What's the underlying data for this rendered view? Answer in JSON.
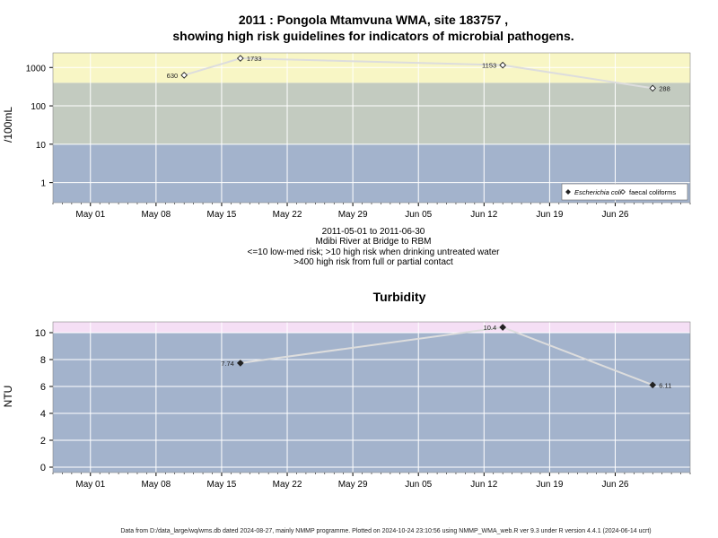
{
  "header": {
    "title_line1": "2011 : Pongola Mtamvuna WMA, site 183757 ,",
    "title_line2": "showing high risk guidelines for indicators of microbial pathogens."
  },
  "caption": {
    "line1": "2011-05-01 to 2011-06-30",
    "line2": "Mdibi River at Bridge to RBM",
    "line3": "<=10 low-med risk; >10 high risk when drinking untreated water",
    "line4": ">400 high risk from full or partial contact"
  },
  "footer": {
    "text": "Data from D:/data_large/wq/wms.db dated 2024-08-27, mainly NMMP programme. Plotted on 2024-10-24 23:10:56 using NMMP_WMA_web.R ver 9.3 under R version 4.4.1 (2024-06-14 ucrt)"
  },
  "colors": {
    "zone_low": "#a3b3cc",
    "zone_mid": "#c3cbc0",
    "zone_high_microbial": "#f8f6c5",
    "zone_high_turbidity": "#f5dff5",
    "grid": "#ffffff",
    "series_line": "#dddddd"
  },
  "chart_data": [
    {
      "type": "line",
      "title": "",
      "ylabel": "/100mL",
      "xlabel": "",
      "yscale": "log",
      "ylim": [
        0.3,
        2400
      ],
      "xlim": [
        "2011-04-27",
        "2011-07-04"
      ],
      "x_ticks": [
        "May 01",
        "May 08",
        "May 15",
        "May 22",
        "May 29",
        "Jun 05",
        "Jun 12",
        "Jun 19",
        "Jun 26"
      ],
      "x_tick_dates": [
        "2011-05-01",
        "2011-05-08",
        "2011-05-15",
        "2011-05-22",
        "2011-05-29",
        "2011-06-05",
        "2011-06-12",
        "2011-06-19",
        "2011-06-26"
      ],
      "y_ticks": [
        "1",
        "10",
        "100",
        "1000"
      ],
      "y_tick_values": [
        1,
        10,
        100,
        1000
      ],
      "zones": [
        {
          "from": 0.3,
          "to": 10,
          "color": "#a3b3cc"
        },
        {
          "from": 10,
          "to": 400,
          "color": "#c3cbc0"
        },
        {
          "from": 400,
          "to": 2400,
          "color": "#f8f6c5"
        }
      ],
      "legend_position": "bottom-right",
      "legend": [
        {
          "label": "Escherichia coli",
          "marker": "filled-diamond"
        },
        {
          "label": "faecal coliforms",
          "marker": "open-diamond"
        }
      ],
      "series": [
        {
          "name": "faecal coliforms",
          "marker": "open-diamond",
          "x": [
            "2011-05-11",
            "2011-05-17",
            "2011-06-14",
            "2011-06-30"
          ],
          "y": [
            630,
            1733,
            1153,
            288
          ],
          "labels": [
            "630",
            "1733",
            "1153",
            "288"
          ],
          "label_side": [
            "left",
            "right",
            "left",
            "right"
          ]
        }
      ]
    },
    {
      "type": "line",
      "title": "Turbidity",
      "ylabel": "NTU",
      "xlabel": "",
      "ylim": [
        -0.4,
        10.8
      ],
      "xlim": [
        "2011-04-27",
        "2011-07-04"
      ],
      "x_ticks": [
        "May 01",
        "May 08",
        "May 15",
        "May 22",
        "May 29",
        "Jun 05",
        "Jun 12",
        "Jun 19",
        "Jun 26"
      ],
      "x_tick_dates": [
        "2011-05-01",
        "2011-05-08",
        "2011-05-15",
        "2011-05-22",
        "2011-05-29",
        "2011-06-05",
        "2011-06-12",
        "2011-06-19",
        "2011-06-26"
      ],
      "y_ticks": [
        "0",
        "2",
        "4",
        "6",
        "8",
        "10"
      ],
      "y_tick_values": [
        0,
        2,
        4,
        6,
        8,
        10
      ],
      "zones": [
        {
          "from": -0.4,
          "to": 10,
          "color": "#a3b3cc"
        },
        {
          "from": 10,
          "to": 10.8,
          "color": "#f5dff5"
        }
      ],
      "series": [
        {
          "name": "",
          "marker": "filled-diamond",
          "x": [
            "2011-05-17",
            "2011-06-14",
            "2011-06-30"
          ],
          "y": [
            7.74,
            10.4,
            6.11
          ],
          "labels": [
            "7.74",
            "10.4",
            "6.11"
          ],
          "label_side": [
            "left",
            "left",
            "right"
          ]
        }
      ]
    }
  ]
}
